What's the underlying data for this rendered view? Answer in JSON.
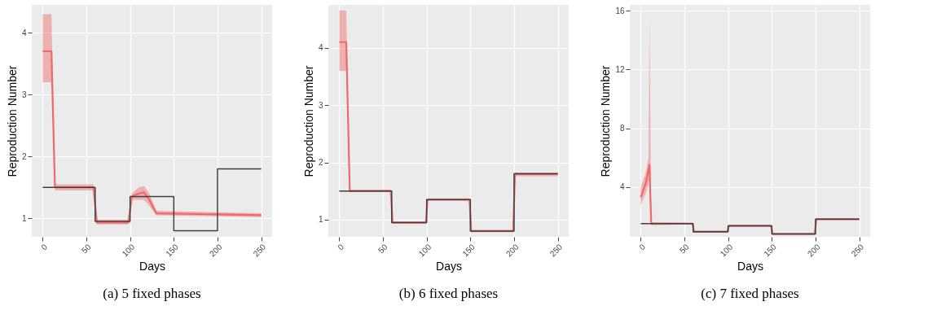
{
  "chart_data": [
    {
      "type": "line",
      "title": "(a) 5 fixed phases",
      "xlabel": "Days",
      "ylabel": "Reproduction Number",
      "xlim": [
        -12.5,
        262.5
      ],
      "xticks": [
        0,
        50,
        100,
        150,
        200,
        250
      ],
      "ylim": [
        0.7,
        4.45
      ],
      "yticks": [
        1,
        2,
        3,
        4
      ],
      "grid": true,
      "series": [
        {
          "type": "line",
          "color": "#f0686a",
          "x": [
            0,
            10,
            14,
            58,
            62,
            98,
            102,
            110,
            116,
            122,
            130,
            250
          ],
          "values": [
            3.7,
            3.7,
            1.5,
            1.5,
            0.93,
            0.93,
            1.35,
            1.4,
            1.42,
            1.3,
            1.08,
            1.05
          ],
          "lower": [
            3.2,
            3.2,
            1.45,
            1.45,
            0.9,
            0.9,
            1.3,
            1.3,
            1.3,
            1.2,
            1.05,
            1.02
          ],
          "upper": [
            4.3,
            4.3,
            1.55,
            1.55,
            0.98,
            0.98,
            1.4,
            1.5,
            1.52,
            1.4,
            1.12,
            1.08
          ]
        },
        {
          "type": "step",
          "color": "#404040",
          "x": [
            0,
            60,
            100,
            150,
            200,
            250
          ],
          "values": [
            1.5,
            0.95,
            1.35,
            0.8,
            1.8,
            1.8
          ]
        }
      ]
    },
    {
      "type": "line",
      "title": "(b) 6 fixed phases",
      "xlabel": "Days",
      "ylabel": "Reproduction Number",
      "xlim": [
        -12.5,
        262.5
      ],
      "xticks": [
        0,
        50,
        100,
        150,
        200,
        250
      ],
      "ylim": [
        0.7,
        4.75
      ],
      "yticks": [
        1,
        2,
        3,
        4
      ],
      "grid": true,
      "series": [
        {
          "type": "line",
          "color": "#f0686a",
          "x": [
            0,
            8,
            12,
            59,
            61,
            99,
            101,
            149,
            151,
            199,
            201,
            250
          ],
          "values": [
            4.1,
            4.1,
            1.5,
            1.5,
            0.95,
            0.95,
            1.35,
            1.35,
            0.8,
            0.8,
            1.8,
            1.8
          ],
          "lower": [
            3.6,
            3.6,
            1.48,
            1.48,
            0.93,
            0.93,
            1.33,
            1.33,
            0.78,
            0.78,
            1.76,
            1.76
          ],
          "upper": [
            4.65,
            4.65,
            1.52,
            1.52,
            0.97,
            0.97,
            1.37,
            1.37,
            0.82,
            0.82,
            1.82,
            1.82
          ]
        },
        {
          "type": "step",
          "color": "#404040",
          "x": [
            0,
            60,
            100,
            150,
            200,
            250
          ],
          "values": [
            1.5,
            0.95,
            1.35,
            0.8,
            1.8,
            1.8
          ]
        }
      ]
    },
    {
      "type": "line",
      "title": "(c) 7 fixed phases",
      "xlabel": "Days",
      "ylabel": "Reproduction Number",
      "xlim": [
        -12.5,
        262.5
      ],
      "xticks": [
        0,
        50,
        100,
        150,
        200,
        250
      ],
      "ylim": [
        0.6,
        16.4
      ],
      "yticks": [
        4,
        8,
        12,
        16
      ],
      "grid": true,
      "series": [
        {
          "type": "line",
          "color": "#f0686a",
          "x": [
            0,
            3,
            6,
            9,
            10,
            12,
            59,
            61,
            99,
            101,
            149,
            151,
            199,
            201,
            250
          ],
          "values": [
            3.3,
            3.8,
            4.3,
            5.2,
            5.5,
            1.5,
            1.5,
            0.95,
            0.95,
            1.35,
            1.35,
            0.8,
            0.8,
            1.8,
            1.8
          ],
          "lower": [
            2.7,
            3.2,
            3.6,
            4.2,
            4.5,
            1.4,
            1.45,
            0.9,
            0.9,
            1.3,
            1.3,
            0.75,
            0.75,
            1.75,
            1.75
          ],
          "upper": [
            4,
            4.5,
            5,
            6,
            15.5,
            1.6,
            1.55,
            1,
            1,
            1.4,
            1.4,
            0.85,
            0.85,
            1.85,
            1.85
          ]
        },
        {
          "type": "step",
          "color": "#404040",
          "x": [
            0,
            60,
            100,
            150,
            200,
            250
          ],
          "values": [
            1.5,
            0.95,
            1.35,
            0.8,
            1.8,
            1.8
          ]
        }
      ]
    }
  ]
}
